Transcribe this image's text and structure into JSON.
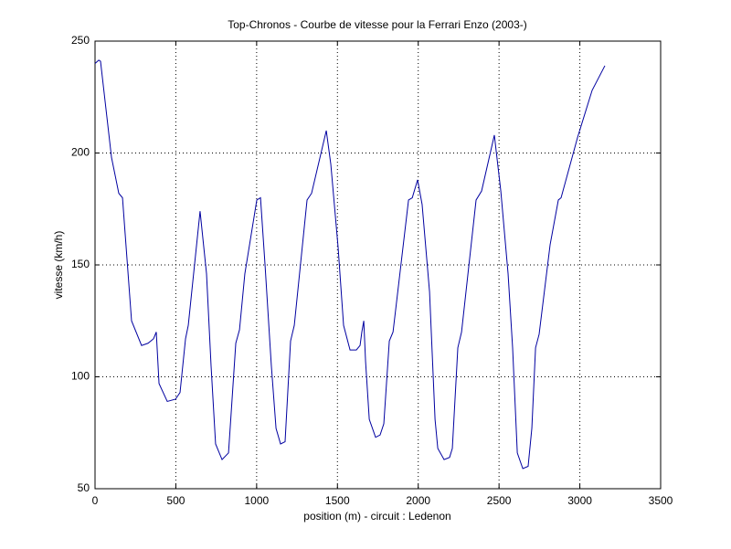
{
  "chart_data": {
    "type": "line",
    "title": "Top-Chronos - Courbe de vitesse pour la Ferrari Enzo (2003-)",
    "x_label": "position (m) - circuit : Ledenon",
    "y_label": "vitesse (km/h)",
    "x": [
      0,
      23,
      34,
      102,
      147,
      170,
      226,
      288,
      328,
      362,
      379,
      396,
      447,
      498,
      526,
      560,
      577,
      650,
      690,
      718,
      746,
      786,
      826,
      871,
      894,
      927,
      1001,
      1024,
      1052,
      1091,
      1120,
      1148,
      1176,
      1210,
      1233,
      1312,
      1340,
      1431,
      1459,
      1504,
      1538,
      1578,
      1617,
      1640,
      1651,
      1663,
      1674,
      1697,
      1736,
      1764,
      1787,
      1821,
      1844,
      1940,
      1963,
      1996,
      2024,
      2070,
      2104,
      2121,
      2160,
      2194,
      2211,
      2245,
      2268,
      2358,
      2392,
      2471,
      2511,
      2556,
      2584,
      2613,
      2647,
      2680,
      2703,
      2726,
      2748,
      2816,
      2867,
      2884,
      2986,
      3076,
      3155
    ],
    "series": [
      {
        "color": "#0000a0",
        "values": [
          240,
          241.5,
          241,
          198,
          182,
          180,
          125,
          114,
          115,
          117,
          120,
          97,
          89,
          90,
          93,
          117,
          123,
          174,
          146,
          105,
          70,
          63,
          66,
          115,
          121,
          146,
          179,
          180,
          150,
          105,
          77,
          70,
          71,
          116,
          123,
          179,
          182,
          210,
          195,
          158,
          123,
          112,
          112,
          114,
          120,
          125,
          107,
          81,
          73,
          74,
          79,
          116,
          120,
          179,
          180,
          188,
          177,
          138,
          81,
          68,
          63,
          64,
          68,
          113,
          120,
          179,
          183,
          208,
          183,
          146,
          113,
          66,
          59,
          60,
          77,
          113,
          119,
          159,
          179,
          180,
          207,
          228,
          239
        ]
      }
    ],
    "xlim": [
      0,
      3500
    ],
    "xticks": [
      0,
      500,
      1000,
      1500,
      2000,
      2500,
      3000,
      3500
    ],
    "ylim": [
      50,
      250
    ],
    "yticks": [
      50,
      100,
      150,
      200,
      250
    ],
    "grid": true
  }
}
